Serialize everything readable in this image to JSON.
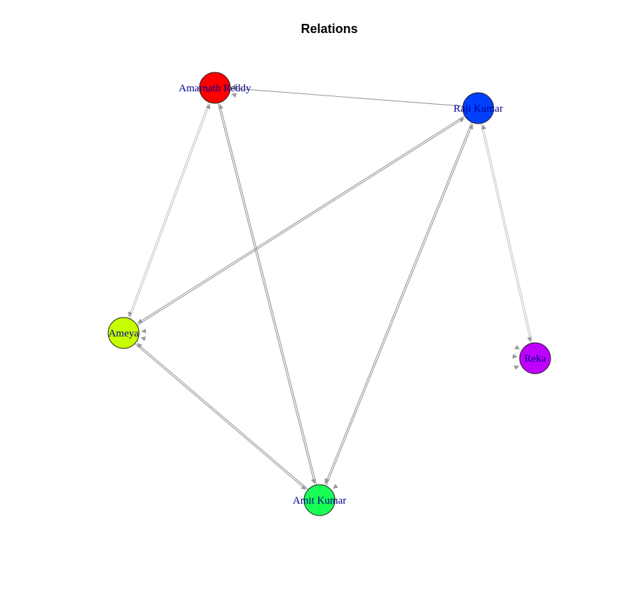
{
  "title": "Relations",
  "nodes": [
    {
      "id": "amarnath",
      "name": "Amarnath Reddy",
      "color": "#ff0000"
    },
    {
      "id": "raji",
      "name": "Raji Kumar",
      "color": "#0040ff"
    },
    {
      "id": "ameya",
      "name": "Ameya",
      "color": "#c6ff00"
    },
    {
      "id": "reka",
      "name": "Reka",
      "color": "#c000ff"
    },
    {
      "id": "amit",
      "name": "Amit Kumar",
      "color": "#19ff55"
    }
  ],
  "edges": [
    {
      "from": "raji",
      "to": "amarnath"
    },
    {
      "from": "amarnath",
      "to": "ameya"
    },
    {
      "from": "ameya",
      "to": "amarnath"
    },
    {
      "from": "amarnath",
      "to": "amit"
    },
    {
      "from": "amit",
      "to": "amarnath"
    },
    {
      "from": "ameya",
      "to": "raji"
    },
    {
      "from": "raji",
      "to": "ameya"
    },
    {
      "from": "amit",
      "to": "raji"
    },
    {
      "from": "raji",
      "to": "amit"
    },
    {
      "from": "ameya",
      "to": "amit"
    },
    {
      "from": "amit",
      "to": "ameya"
    },
    {
      "from": "raji",
      "to": "reka"
    },
    {
      "from": "reka",
      "to": "raji"
    }
  ],
  "self_loops": [
    "amarnath",
    "ameya",
    "amit",
    "reka"
  ],
  "colors": {
    "edge": "#999999",
    "edge_light": "#c8c8c8",
    "label": "#00008b",
    "title": "#000000",
    "node_border": "#222222"
  }
}
